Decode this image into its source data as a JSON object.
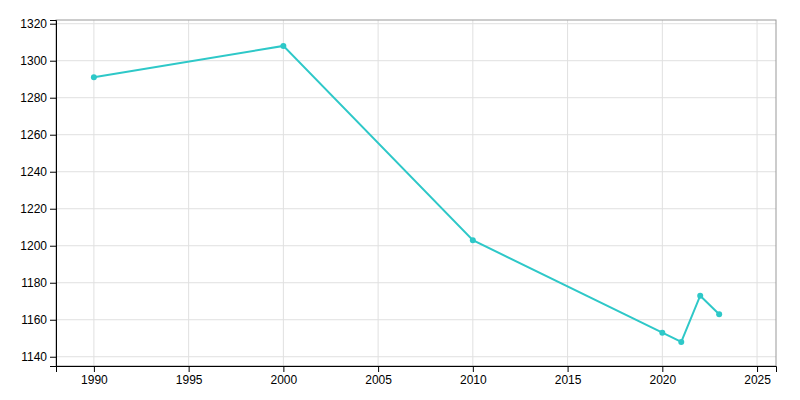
{
  "chart_data": {
    "type": "line",
    "x": [
      1990,
      2000,
      2010,
      2020,
      2021,
      2022,
      2023
    ],
    "values": [
      1291,
      1308,
      1203,
      1153,
      1148,
      1173,
      1163
    ],
    "color": "#2ec8c8",
    "marker": "circle",
    "xlim": [
      1988,
      2026
    ],
    "ylim": [
      1135,
      1322
    ],
    "xticks": [
      1990,
      1995,
      2000,
      2005,
      2010,
      2015,
      2020,
      2025
    ],
    "yticks": [
      1140,
      1160,
      1180,
      1200,
      1220,
      1240,
      1260,
      1280,
      1300,
      1320
    ],
    "grid": true
  }
}
